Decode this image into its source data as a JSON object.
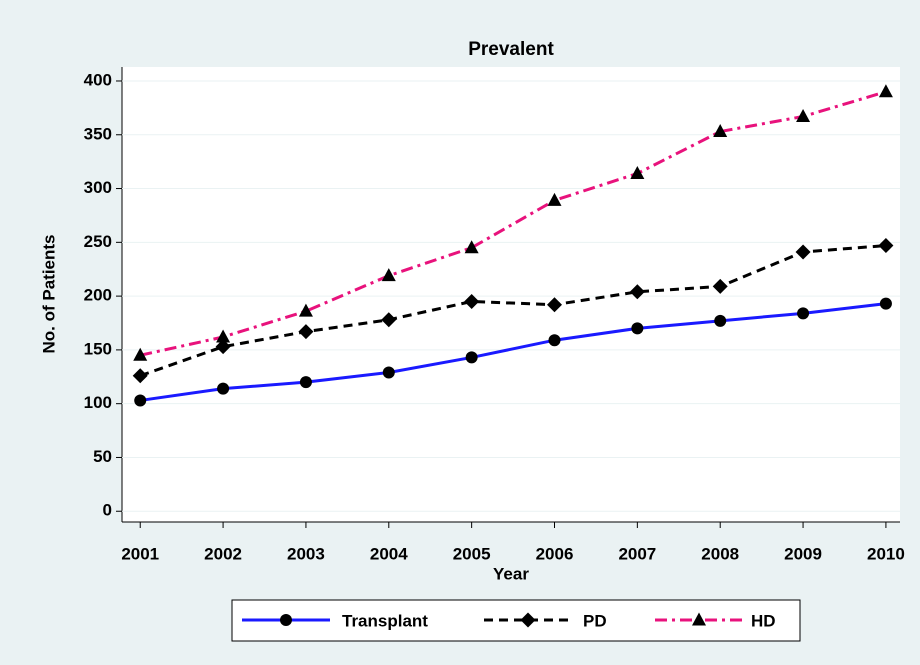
{
  "chart_data": {
    "type": "line",
    "title": "Prevalent",
    "x_label": "Year",
    "y_label": "No. of Patients",
    "x": [
      2001,
      2002,
      2003,
      2004,
      2005,
      2006,
      2007,
      2008,
      2009,
      2010
    ],
    "series": [
      {
        "name": "Transplant",
        "color": "#1a1aff",
        "marker": "circle",
        "dash": "solid",
        "values": [
          103,
          114,
          120,
          129,
          143,
          159,
          170,
          177,
          184,
          193
        ]
      },
      {
        "name": "PD",
        "color": "#000000",
        "marker": "diamond",
        "dash": "dash",
        "values": [
          126,
          153,
          167,
          178,
          195,
          192,
          204,
          209,
          241,
          247
        ]
      },
      {
        "name": "HD",
        "color": "#e8127c",
        "marker": "triangle",
        "dash": "dashdot",
        "values": [
          145,
          162,
          186,
          219,
          245,
          289,
          314,
          353,
          367,
          390
        ]
      }
    ],
    "xlim": [
      2000.78,
      2010.17
    ],
    "ylim": [
      -10,
      413
    ],
    "xticks": [
      2001,
      2002,
      2003,
      2004,
      2005,
      2006,
      2007,
      2008,
      2009,
      2010
    ],
    "yticks": [
      0,
      50,
      100,
      150,
      200,
      250,
      300,
      350,
      400
    ],
    "grid": true,
    "legend": "bottom"
  }
}
